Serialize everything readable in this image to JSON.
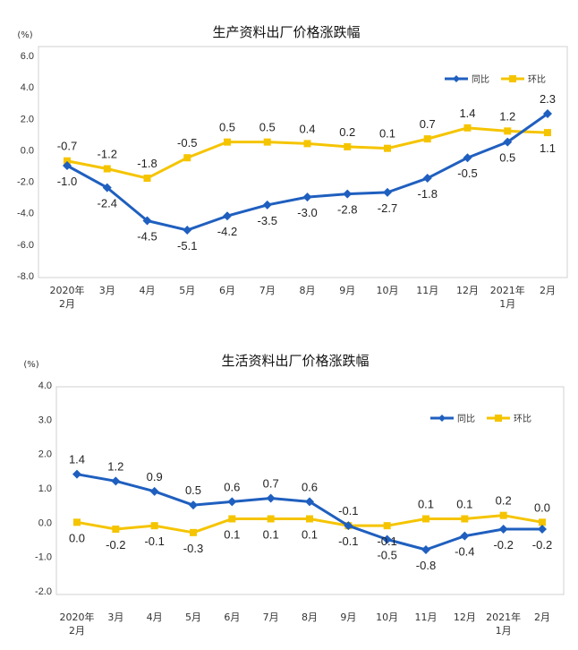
{
  "colors": {
    "yoy": "#1f5fbf",
    "mom": "#f5c400",
    "frame": "#d0d0d0"
  },
  "chart_data": [
    {
      "type": "line",
      "title": "生产资料出厂价格涨跌幅",
      "unit": "(%)",
      "ylim": [
        -8.0,
        6.0
      ],
      "yticks": [
        "6.0",
        "4.0",
        "2.0",
        "0.0",
        "-2.0",
        "-4.0",
        "-6.0",
        "-8.0"
      ],
      "ytick_values": [
        6,
        4,
        2,
        0,
        -2,
        -4,
        -6,
        -8
      ],
      "categories": [
        [
          "2020年",
          "2月"
        ],
        [
          "3月"
        ],
        [
          "4月"
        ],
        [
          "5月"
        ],
        [
          "6月"
        ],
        [
          "7月"
        ],
        [
          "8月"
        ],
        [
          "9月"
        ],
        [
          "10月"
        ],
        [
          "11月"
        ],
        [
          "12月"
        ],
        [
          "2021年",
          "1月"
        ],
        [
          "2月"
        ]
      ],
      "series": [
        {
          "name": "同比",
          "color": "#1f5fbf",
          "marker": "diamond",
          "values": [
            -1.0,
            -2.4,
            -4.5,
            -5.1,
            -4.2,
            -3.5,
            -3.0,
            -2.8,
            -2.7,
            -1.8,
            -0.5,
            0.5,
            2.3
          ],
          "labels": [
            "-1.0",
            "-2.4",
            "-4.5",
            "-5.1",
            "-4.2",
            "-3.5",
            "-3.0",
            "-2.8",
            "-2.7",
            "-1.8",
            "-0.5",
            "0.5",
            "2.3"
          ]
        },
        {
          "name": "环比",
          "color": "#f5c400",
          "marker": "square",
          "values": [
            -0.7,
            -1.2,
            -1.8,
            -0.5,
            0.5,
            0.5,
            0.4,
            0.2,
            0.1,
            0.7,
            1.4,
            1.2,
            1.1
          ],
          "labels": [
            "-0.7",
            "-1.2",
            "-1.8",
            "-0.5",
            "0.5",
            "0.5",
            "0.4",
            "0.2",
            "0.1",
            "0.7",
            "1.4",
            "1.2",
            "1.1"
          ]
        }
      ]
    },
    {
      "type": "line",
      "title": "生活资料出厂价格涨跌幅",
      "unit": "(%)",
      "ylim": [
        -2.0,
        4.0
      ],
      "yticks": [
        "4.0",
        "3.0",
        "2.0",
        "1.0",
        "0.0",
        "-1.0",
        "-2.0"
      ],
      "ytick_values": [
        4,
        3,
        2,
        1,
        0,
        -1,
        -2
      ],
      "categories": [
        [
          "2020年",
          "2月"
        ],
        [
          "3月"
        ],
        [
          "4月"
        ],
        [
          "5月"
        ],
        [
          "6月"
        ],
        [
          "7月"
        ],
        [
          "8月"
        ],
        [
          "9月"
        ],
        [
          "10月"
        ],
        [
          "11月"
        ],
        [
          "12月"
        ],
        [
          "2021年",
          "1月"
        ],
        [
          "2月"
        ]
      ],
      "series": [
        {
          "name": "同比",
          "color": "#1f5fbf",
          "marker": "diamond",
          "values": [
            1.4,
            1.2,
            0.9,
            0.5,
            0.6,
            0.7,
            0.6,
            -0.1,
            -0.5,
            -0.8,
            -0.4,
            -0.2,
            -0.2
          ],
          "labels": [
            "1.4",
            "1.2",
            "0.9",
            "0.5",
            "0.6",
            "0.7",
            "0.6",
            "-0.1",
            "-0.5",
            "-0.8",
            "-0.4",
            "-0.2",
            "-0.2"
          ]
        },
        {
          "name": "环比",
          "color": "#f5c400",
          "marker": "square",
          "values": [
            0.0,
            -0.2,
            -0.1,
            -0.3,
            0.1,
            0.1,
            0.1,
            -0.1,
            -0.1,
            0.1,
            0.1,
            0.2,
            0.0
          ],
          "labels": [
            "0.0",
            "-0.2",
            "-0.1",
            "-0.3",
            "0.1",
            "0.1",
            "0.1",
            "-0.1",
            "-0.1",
            "0.1",
            "0.1",
            "0.2",
            "0.0"
          ]
        }
      ]
    }
  ]
}
